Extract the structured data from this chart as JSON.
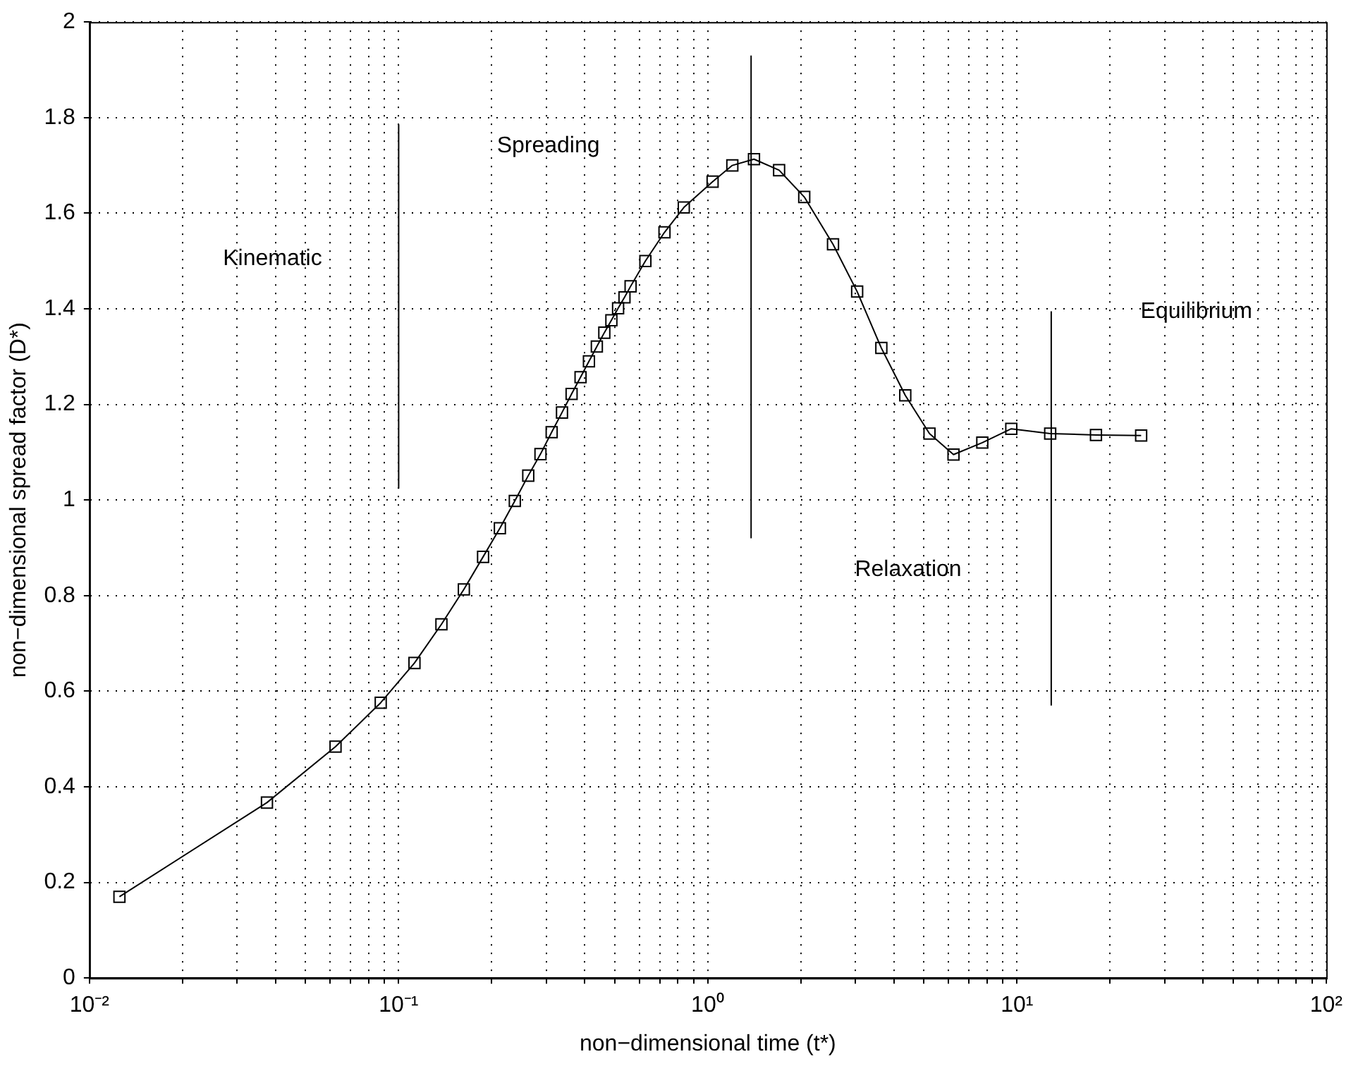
{
  "chart_data": {
    "type": "line",
    "xlabel": "non−dimensional time (t*)",
    "ylabel": "non−dimensional spread factor (D*)",
    "log": "x",
    "grid": true,
    "legend": false,
    "xlim": [
      0.01,
      100
    ],
    "ylim": [
      0,
      2
    ],
    "xticks": [
      {
        "value": 0.01,
        "label": "10⁻²"
      },
      {
        "value": 0.02,
        "label": null
      },
      {
        "value": 0.03,
        "label": null
      },
      {
        "value": 0.04,
        "label": null
      },
      {
        "value": 0.05,
        "label": null
      },
      {
        "value": 0.06,
        "label": null
      },
      {
        "value": 0.07,
        "label": null
      },
      {
        "value": 0.08,
        "label": null
      },
      {
        "value": 0.09,
        "label": null
      },
      {
        "value": 0.1,
        "label": "10⁻¹"
      },
      {
        "value": 0.2,
        "label": null
      },
      {
        "value": 0.3,
        "label": null
      },
      {
        "value": 0.4,
        "label": null
      },
      {
        "value": 0.5,
        "label": null
      },
      {
        "value": 0.6,
        "label": null
      },
      {
        "value": 0.7,
        "label": null
      },
      {
        "value": 0.8,
        "label": null
      },
      {
        "value": 0.9,
        "label": null
      },
      {
        "value": 1,
        "label": "10⁰"
      },
      {
        "value": 2,
        "label": null
      },
      {
        "value": 3,
        "label": null
      },
      {
        "value": 4,
        "label": null
      },
      {
        "value": 5,
        "label": null
      },
      {
        "value": 6,
        "label": null
      },
      {
        "value": 7,
        "label": null
      },
      {
        "value": 8,
        "label": null
      },
      {
        "value": 9,
        "label": null
      },
      {
        "value": 10,
        "label": "10¹"
      },
      {
        "value": 20,
        "label": null
      },
      {
        "value": 30,
        "label": null
      },
      {
        "value": 40,
        "label": null
      },
      {
        "value": 50,
        "label": null
      },
      {
        "value": 60,
        "label": null
      },
      {
        "value": 70,
        "label": null
      },
      {
        "value": 80,
        "label": null
      },
      {
        "value": 90,
        "label": null
      },
      {
        "value": 100,
        "label": "10²"
      }
    ],
    "yticks": [
      0,
      0.2,
      0.4,
      0.6,
      0.8,
      1,
      1.2,
      1.4,
      1.6,
      1.8,
      2
    ],
    "series": [
      {
        "color": "#000000",
        "marker": "square",
        "x": [
          0.0125,
          0.0375,
          0.0625,
          0.0875,
          0.1125,
          0.1375,
          0.1625,
          0.1875,
          0.2125,
          0.2375,
          0.2625,
          0.2875,
          0.3125,
          0.3375,
          0.3625,
          0.3875,
          0.4125,
          0.4375,
          0.4625,
          0.4875,
          0.5125,
          0.5375,
          0.5625,
          0.628,
          0.724,
          0.836,
          1.036,
          1.2,
          1.41,
          1.7,
          2.05,
          2.54,
          3.04,
          3.64,
          4.35,
          5.21,
          6.23,
          7.72,
          9.58,
          12.8,
          18,
          25.2
        ],
        "values": [
          0.17,
          0.367,
          0.484,
          0.576,
          0.659,
          0.74,
          0.813,
          0.881,
          0.941,
          0.998,
          1.051,
          1.096,
          1.142,
          1.183,
          1.222,
          1.257,
          1.29,
          1.321,
          1.35,
          1.376,
          1.401,
          1.424,
          1.447,
          1.5,
          1.56,
          1.612,
          1.666,
          1.7,
          1.713,
          1.69,
          1.634,
          1.535,
          1.436,
          1.318,
          1.219,
          1.139,
          1.095,
          1.12,
          1.149,
          1.139,
          1.136,
          1.135
        ]
      },
      {
        "color": "#000000",
        "marker": "none",
        "x": [
          0.1,
          0.1
        ],
        "values": [
          1.024,
          1.786
        ]
      },
      {
        "color": "#000000",
        "marker": "none",
        "x": [
          1.38,
          1.38
        ],
        "values": [
          0.92,
          1.93
        ]
      },
      {
        "color": "#000000",
        "marker": "none",
        "x": [
          12.9,
          12.9
        ],
        "values": [
          0.57,
          1.395
        ]
      }
    ],
    "annotations": [
      "Kinematic",
      "Spreading",
      "Relaxation",
      "Equilibrium"
    ]
  }
}
